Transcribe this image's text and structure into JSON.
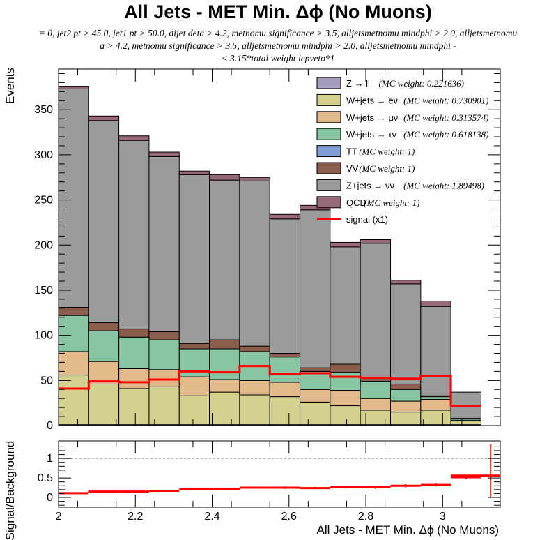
{
  "title": "All Jets - MET Min. Δϕ (No Muons)",
  "cut_lines": [
    "= 0, jet2 pt > 45.0, jet1 pt > 50.0, dijet deta > 4.2, metnomu significance > 3.5, alljetsmetnomu mindphi > 2.0, alljetsmetnomu",
    "a > 4.2, metnomu significance > 3.5, alljetsmetnomu mindphi > 2.0, alljetsmetnomu mindphi -",
    "< 3.15*total weight lepveto*1"
  ],
  "main_ylabel": "Events",
  "ratio_ylabel": "Signal/Background",
  "xlabel": "All Jets - MET Min. Δϕ (No Muons)",
  "legend": [
    {
      "label": "Z → ll",
      "weight": "(MC weight: 0.221636)",
      "color": "#a69bbd",
      "kind": "box"
    },
    {
      "label": "W+jets → eν",
      "weight": "(MC weight: 0.730901)",
      "color": "#d4d18f",
      "kind": "box"
    },
    {
      "label": "W+jets → μν",
      "weight": "(MC weight: 0.313574)",
      "color": "#e2b98a",
      "kind": "box"
    },
    {
      "label": "W+jets → τν",
      "weight": "(MC weight: 0.618138)",
      "color": "#87c5a3",
      "kind": "box"
    },
    {
      "label": "TT",
      "weight": "(MC weight: 1)",
      "color": "#7f9fd6",
      "kind": "box"
    },
    {
      "label": "VV",
      "weight": "(MC weight: 1)",
      "color": "#8b5d4d",
      "kind": "box"
    },
    {
      "label": "Z+jets → νν",
      "weight": "(MC weight: 1.89498)",
      "color": "#9b9b9b",
      "kind": "box"
    },
    {
      "label": "QCD",
      "weight": "(MC weight: 1)",
      "color": "#966a79",
      "kind": "box"
    },
    {
      "label": "signal (x1)",
      "weight": "",
      "color": "#ff0000",
      "kind": "line"
    }
  ],
  "chart_data": [
    {
      "type": "bar",
      "subtype": "stacked-histogram",
      "bin_edges": [
        2.0,
        2.0786,
        2.1571,
        2.2357,
        2.3143,
        2.3929,
        2.4714,
        2.55,
        2.6286,
        2.7071,
        2.7857,
        2.8643,
        2.9429,
        3.0214,
        3.1
      ],
      "ylim": [
        0,
        395
      ],
      "xlim": [
        2.0,
        3.15
      ],
      "yticks": [
        0,
        50,
        100,
        150,
        200,
        250,
        300,
        350
      ],
      "series": [
        {
          "name": "Z → ll",
          "color": "#a69bbd",
          "values": [
            1,
            1,
            1,
            1,
            1,
            1,
            1,
            1,
            1,
            1,
            1,
            1,
            1,
            1
          ]
        },
        {
          "name": "W+jets → eν",
          "color": "#d4d18f",
          "values": [
            55,
            45,
            40,
            42,
            32,
            36,
            33,
            31,
            25,
            21,
            16,
            14,
            16,
            4
          ]
        },
        {
          "name": "W+jets → μν",
          "color": "#e2b98a",
          "values": [
            26,
            25,
            22,
            19,
            21,
            14,
            16,
            16,
            14,
            17,
            13,
            12,
            12,
            1
          ]
        },
        {
          "name": "W+jets → τν",
          "color": "#87c5a3",
          "values": [
            40,
            34,
            35,
            33,
            31,
            34,
            32,
            28,
            20,
            20,
            19,
            13,
            3,
            2
          ]
        },
        {
          "name": "TT",
          "color": "#7f9fd6",
          "values": [
            0,
            0,
            0,
            0,
            0,
            0,
            0,
            0,
            0,
            0,
            0,
            0,
            0,
            0
          ]
        },
        {
          "name": "VV",
          "color": "#8b5d4d",
          "values": [
            9,
            9,
            9,
            9,
            6,
            10,
            6,
            4,
            4,
            9,
            4,
            6,
            1,
            0
          ]
        },
        {
          "name": "Z+jets → νν",
          "color": "#9b9b9b",
          "values": [
            242,
            224,
            209,
            194,
            187,
            177,
            183,
            149,
            175,
            130,
            149,
            111,
            99,
            29
          ]
        },
        {
          "name": "QCD",
          "color": "#966a79",
          "values": [
            3,
            5,
            5,
            5,
            4,
            6,
            4,
            5,
            5,
            5,
            4,
            4,
            6,
            0
          ]
        }
      ],
      "signal": {
        "name": "signal (x1)",
        "color": "#ff0000",
        "values": [
          41,
          49,
          48,
          51,
          60,
          59,
          66,
          57,
          58,
          54,
          53,
          52,
          55,
          22
        ]
      }
    },
    {
      "type": "scatter",
      "subtype": "ratio",
      "xlim": [
        2.0,
        3.15
      ],
      "ylim": [
        -0.25,
        1.45
      ],
      "xticks": [
        2,
        2.2,
        2.4,
        2.6,
        2.8,
        3
      ],
      "yticks": [
        0,
        0.5,
        1
      ],
      "reference_line": 1,
      "values": [
        0.11,
        0.15,
        0.15,
        0.17,
        0.21,
        0.21,
        0.25,
        0.25,
        0.24,
        0.26,
        0.26,
        0.3,
        0.32,
        0.52
      ],
      "errors": [
        0.02,
        0.02,
        0.02,
        0.02,
        0.02,
        0.02,
        0.02,
        0.03,
        0.03,
        0.03,
        0.04,
        0.04,
        0.04,
        0.05
      ],
      "last_bin": {
        "x": 3.125,
        "value": 0.56,
        "err_low": 0.56,
        "err_high": 0.8
      }
    }
  ]
}
